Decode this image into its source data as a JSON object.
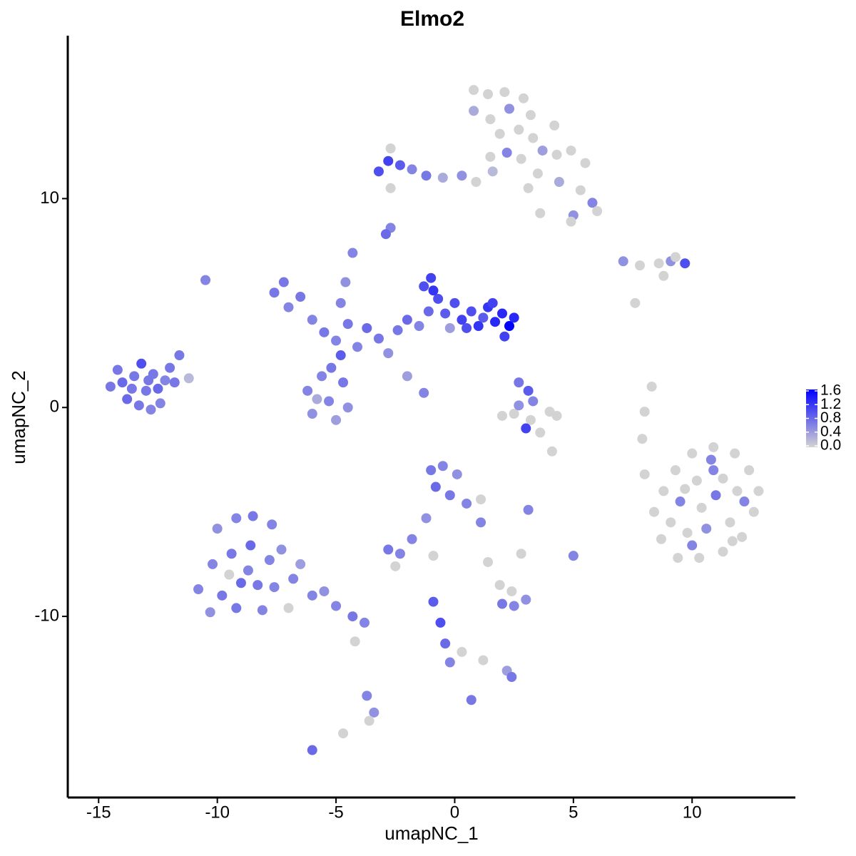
{
  "chart_data": {
    "type": "scatter",
    "title": "Elmo2",
    "x_label": "umapNC_1",
    "y_label": "umapNC_2",
    "xlim": [
      -16.3,
      14.35
    ],
    "ylim": [
      -18.67,
      17.8
    ],
    "xticks": [
      -15,
      -10,
      -5,
      0,
      5,
      10
    ],
    "yticks": [
      -10,
      0,
      10
    ],
    "colorbar": {
      "lim": [
        0,
        1.6
      ],
      "ticks": [
        {
          "value": 0,
          "label": "0.0"
        },
        0.4,
        0.8,
        1.2,
        1.6
      ],
      "colors": [
        "#d3d3d3",
        "#0000ff"
      ]
    },
    "x": [
      -14.5,
      -14.2,
      -13.8,
      -13.5,
      -13.2,
      -13.0,
      -12.7,
      -12.4,
      -12.0,
      -11.6,
      -14.0,
      -13.6,
      -13.3,
      -12.9,
      -12.5,
      -12.2,
      -11.8,
      -11.2,
      -12.8,
      -10.5,
      -6.2,
      -6.0,
      -5.6,
      -5.3,
      -5.0,
      -4.7,
      -4.5,
      -5.8,
      -5.2,
      -4.8,
      -7.6,
      -7.2,
      -7.0,
      -6.5,
      -6.0,
      -5.5,
      -5.0,
      -4.5,
      -4.1,
      -4.3,
      -3.7,
      -3.2,
      -2.8,
      -2.4,
      -2.0,
      -1.5,
      -4.6,
      -4.8,
      -2.0,
      -1.3,
      -1.3,
      -1.0,
      -0.7,
      -0.4,
      0.0,
      0.3,
      0.7,
      1.0,
      1.4,
      1.7,
      2.0,
      2.3,
      2.5,
      1.6,
      -0.9,
      0.5,
      2.1,
      -0.2,
      1.2,
      -1.1,
      -3.2,
      -2.8,
      -2.3,
      -1.8,
      -1.2,
      -0.5,
      0.3,
      0.9,
      1.6,
      -2.7,
      0.8,
      1.4,
      2.1,
      2.9,
      0.8,
      1.5,
      2.3,
      3.2,
      1.9,
      2.7,
      3.3,
      3.7,
      4.3,
      4.9,
      5.5,
      3.5,
      4.4,
      5.3,
      5.8,
      5.0,
      2.8,
      2.2,
      3.1,
      6.0,
      4.9,
      -2.7,
      7.1,
      7.8,
      8.6,
      9.1,
      9.7,
      9.3,
      8.8,
      7.6,
      2.7,
      3.1,
      3.3,
      2.5,
      3.2,
      4.0,
      2.0,
      3.0,
      4.3,
      3.6,
      8.3,
      8.0,
      7.9,
      8.0,
      4.1,
      2.7,
      8.8,
      9.3,
      10.0,
      10.9,
      11.8,
      12.4,
      12.8,
      12.6,
      12.1,
      11.3,
      10.3,
      9.4,
      8.7,
      8.4,
      9.5,
      10.2,
      11.0,
      11.6,
      10.6,
      9.8,
      10.9,
      11.9,
      9.1,
      10.4,
      11.3,
      12.2,
      9.7,
      10.0,
      11.7,
      10.8,
      -10.0,
      -9.2,
      -8.5,
      -7.7,
      -7.3,
      -10.2,
      -9.4,
      -8.6,
      -7.8,
      -10.8,
      -9.8,
      -9.0,
      -8.3,
      -7.6,
      -6.8,
      -10.3,
      -9.2,
      -8.1,
      -6.0,
      -5.0,
      -4.3,
      -3.8,
      -6.5,
      -7.0,
      -5.5,
      -9.5,
      -8.7,
      -3.7,
      -3.4,
      -3.6,
      -1.0,
      -0.5,
      0.1,
      -0.8,
      -0.2,
      0.5,
      1.1,
      1.1,
      -1.2,
      -1.8,
      -2.8,
      -2.3,
      -2.5,
      2.0,
      2.5,
      3.0,
      2.4,
      2.8,
      5.0,
      3.1,
      -0.9,
      -0.6,
      -0.4,
      -0.2,
      0.3,
      1.2,
      2.2,
      2.4,
      0.7,
      -6.0,
      -4.7,
      -4.2,
      1.9,
      -0.9,
      1.4,
      -2.9,
      -2.7,
      1.5,
      4.2,
      3.6
    ],
    "y": [
      1.0,
      1.8,
      0.4,
      1.5,
      2.1,
      0.8,
      1.6,
      0.2,
      1.9,
      2.5,
      1.2,
      0.9,
      0.1,
      1.3,
      0.9,
      1.3,
      1.2,
      1.4,
      -0.1,
      6.1,
      0.8,
      -0.3,
      1.5,
      0.3,
      -0.6,
      1.2,
      0.0,
      0.4,
      1.9,
      2.5,
      5.5,
      6.0,
      4.8,
      5.3,
      4.2,
      3.6,
      3.2,
      4.0,
      2.9,
      7.4,
      3.8,
      3.3,
      2.6,
      3.7,
      4.2,
      3.9,
      6.0,
      5.0,
      1.5,
      0.7,
      5.8,
      6.2,
      5.2,
      4.5,
      5.0,
      4.2,
      4.6,
      3.9,
      4.8,
      4.1,
      4.5,
      3.9,
      4.3,
      5.0,
      5.6,
      3.8,
      3.4,
      3.8,
      4.3,
      4.6,
      11.3,
      11.8,
      11.6,
      11.4,
      11.1,
      11.0,
      11.1,
      10.8,
      11.3,
      10.5,
      15.2,
      15.0,
      15.1,
      14.8,
      14.2,
      13.8,
      14.3,
      14.0,
      13.1,
      13.3,
      12.9,
      12.3,
      12.1,
      12.3,
      11.7,
      11.2,
      10.8,
      10.4,
      9.8,
      9.2,
      11.9,
      12.2,
      10.5,
      9.4,
      8.9,
      8.6,
      7.0,
      6.8,
      6.9,
      7.0,
      6.9,
      7.2,
      6.3,
      5.0,
      1.2,
      0.8,
      0.3,
      -0.3,
      -0.6,
      -0.2,
      -0.4,
      -1.0,
      -0.4,
      -1.2,
      1.0,
      -0.2,
      -1.5,
      -3.2,
      -2.1,
      0.1,
      -4.0,
      -3.0,
      -2.2,
      -1.9,
      -2.2,
      -3.0,
      -4.0,
      -5.0,
      -6.2,
      -6.9,
      -7.2,
      -7.2,
      -6.3,
      -5.0,
      -4.5,
      -3.5,
      -4.2,
      -5.5,
      -5.8,
      -6.0,
      -3.0,
      -4.0,
      -5.5,
      -4.8,
      -3.4,
      -4.5,
      -3.9,
      -6.6,
      -6.4,
      -2.5,
      -5.8,
      -5.3,
      -5.2,
      -5.6,
      -6.8,
      -7.5,
      -7.0,
      -6.6,
      -7.3,
      -8.7,
      -9.0,
      -8.4,
      -8.5,
      -8.6,
      -8.2,
      -9.8,
      -9.6,
      -9.7,
      -9.0,
      -9.5,
      -10.0,
      -10.3,
      -7.5,
      -9.6,
      -8.8,
      -8.0,
      -7.8,
      -13.8,
      -14.6,
      -15.0,
      -3.0,
      -2.8,
      -3.2,
      -3.8,
      -4.2,
      -4.6,
      -4.4,
      -5.5,
      -5.3,
      -6.3,
      -6.8,
      -7.0,
      -7.6,
      -9.4,
      -9.5,
      -9.2,
      -8.8,
      -7.0,
      -7.1,
      -4.9,
      -9.3,
      -10.3,
      -11.3,
      -12.2,
      -11.7,
      -12.1,
      -12.6,
      -12.9,
      -14.0,
      -16.4,
      -15.6,
      -11.2,
      -8.5,
      -7.1,
      -7.4,
      8.3,
      12.4,
      12.0,
      13.5,
      9.3
    ],
    "values": [
      0.7,
      0.7,
      0.8,
      0.7,
      1.0,
      0.7,
      0.7,
      0.6,
      0.7,
      0.7,
      0.8,
      0.7,
      0.7,
      0.7,
      0.8,
      0.6,
      0.7,
      0.2,
      0.6,
      0.6,
      0.6,
      0.5,
      0.6,
      0.6,
      0.4,
      0.7,
      0.5,
      0.3,
      0.7,
      0.9,
      0.7,
      0.7,
      0.6,
      0.7,
      0.6,
      0.7,
      0.6,
      0.7,
      0.6,
      0.6,
      0.8,
      0.7,
      0.5,
      0.7,
      0.8,
      0.6,
      0.5,
      0.6,
      0.4,
      0.6,
      1.0,
      1.1,
      1.0,
      0.9,
      1.0,
      1.1,
      1.0,
      1.2,
      1.2,
      1.3,
      1.3,
      1.6,
      1.3,
      1.1,
      1.2,
      1.0,
      1.1,
      0.4,
      0.9,
      0.8,
      1.0,
      1.1,
      0.9,
      0.6,
      0.7,
      0.3,
      0.5,
      0,
      0.2,
      0,
      0,
      0,
      0,
      0,
      0.3,
      0,
      0.5,
      0,
      0,
      0,
      0,
      0.4,
      0,
      0,
      0,
      0,
      0.3,
      0,
      0.6,
      0.5,
      0,
      0.6,
      0,
      0,
      0,
      0.6,
      0.5,
      0,
      0,
      0.5,
      1.0,
      0,
      0,
      0,
      0.7,
      0.9,
      0.6,
      0,
      0,
      0,
      0,
      1.1,
      0,
      0,
      0,
      0,
      0,
      0,
      0,
      0.5,
      0,
      0,
      0,
      0,
      0,
      0,
      0,
      0,
      0,
      0,
      0,
      0,
      0,
      0,
      0.6,
      0,
      0.7,
      0,
      0.5,
      0,
      0.6,
      0,
      0,
      0,
      0,
      0.6,
      0,
      0.6,
      0,
      0.6,
      0.5,
      0.6,
      0.7,
      0.6,
      0.5,
      0.6,
      0.7,
      0.8,
      0.6,
      0.6,
      0.7,
      0.8,
      0.7,
      0.6,
      0.6,
      0.5,
      0.7,
      0.6,
      0.6,
      0.6,
      0.7,
      0.6,
      0.4,
      0,
      0.5,
      0,
      0.6,
      0.6,
      0.5,
      0,
      0.7,
      0.6,
      0.5,
      0.8,
      0.7,
      0.6,
      0,
      0.6,
      0.5,
      0.6,
      0.7,
      0.6,
      0,
      0.7,
      0.6,
      0.5,
      0,
      0,
      0.6,
      0.6,
      0.9,
      1.0,
      0.8,
      0.6,
      0,
      0,
      0.4,
      0.7,
      0.7,
      0.8,
      0,
      0,
      0,
      0,
      0,
      0.8,
      0,
      0,
      0,
      0
    ]
  }
}
